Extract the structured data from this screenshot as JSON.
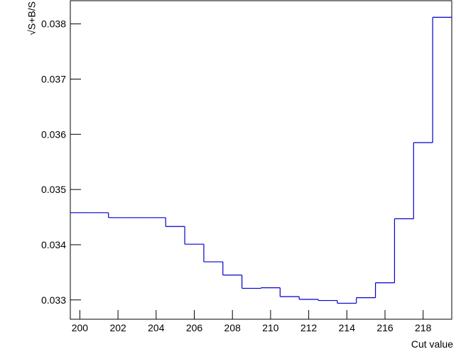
{
  "chart_data": {
    "type": "histogram",
    "y_label": "√S+B/S",
    "x_label": "Cut value",
    "bins": [
      199.5,
      200.5,
      201.5,
      202.5,
      203.5,
      204.5,
      205.5,
      206.5,
      207.5,
      208.5,
      209.5,
      210.5,
      211.5,
      212.5,
      213.5,
      214.5,
      215.5,
      216.5,
      217.5,
      218.5,
      219.5
    ],
    "values": [
      0.03458,
      0.03458,
      0.03449,
      0.03449,
      0.03449,
      0.03433,
      0.03401,
      0.03369,
      0.03345,
      0.03321,
      0.03322,
      0.03306,
      0.03301,
      0.03299,
      0.03294,
      0.03304,
      0.03331,
      0.03447,
      0.03585,
      0.03812
    ],
    "color": "#0000cc",
    "xlim": [
      199.5,
      219.5
    ],
    "ylim": [
      0.03265,
      0.03842
    ],
    "xticks": [
      200,
      202,
      204,
      206,
      208,
      210,
      212,
      214,
      216,
      218
    ],
    "yticks": [
      0.033,
      0.034,
      0.035,
      0.036,
      0.037,
      0.038
    ]
  }
}
